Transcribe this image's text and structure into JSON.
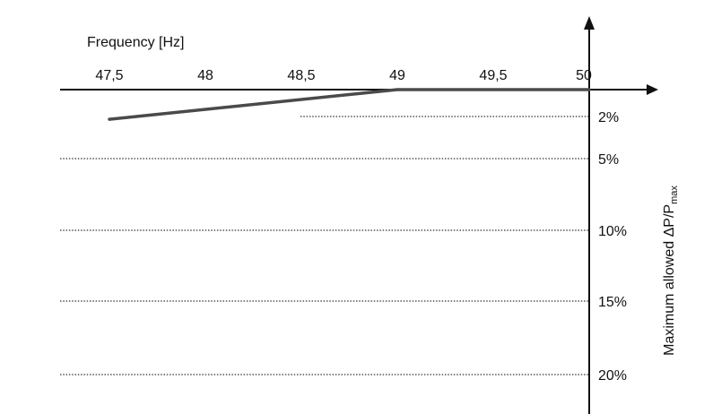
{
  "chart_data": {
    "type": "line",
    "xlabel": "Frequency [Hz]",
    "ylabel": "Maximum allowed ΔP/P",
    "ylabel_subscript": "max",
    "x_ticks": [
      "47,5",
      "48",
      "48,5",
      "49",
      "49,5",
      "50"
    ],
    "y_ticks": [
      "2%",
      "5%",
      "10%",
      "15%",
      "20%"
    ],
    "x_tick_values": [
      47.5,
      48,
      48.5,
      49,
      49.5,
      50
    ],
    "y_tick_values": [
      2,
      5,
      10,
      15,
      20
    ],
    "xlim": [
      47.5,
      50
    ],
    "ylim": [
      0,
      20
    ],
    "grid": true,
    "series": [
      {
        "x": [
          47.5,
          49,
          50
        ],
        "y": [
          2.2,
          0,
          0
        ],
        "color": "#4a4a4a"
      }
    ]
  }
}
